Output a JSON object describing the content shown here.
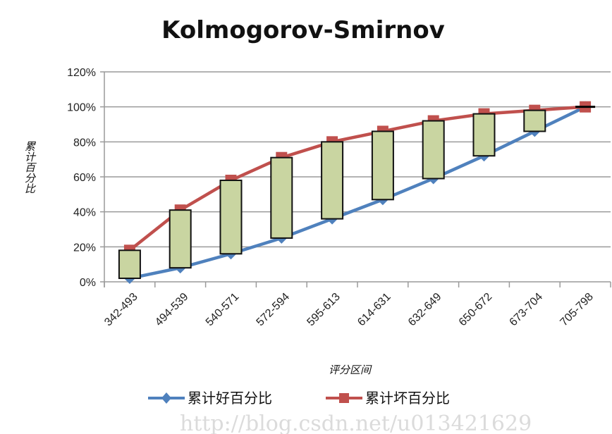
{
  "chart_data": {
    "type": "line",
    "title": "Kolmogorov-Smirnov",
    "xlabel": "评分区间",
    "ylabel": "累计百分比",
    "categories": [
      "342-493",
      "494-539",
      "540-571",
      "572-594",
      "595-613",
      "614-631",
      "632-649",
      "650-672",
      "673-704",
      "705-798"
    ],
    "ylim": [
      0,
      120
    ],
    "yticks": [
      "0%",
      "20%",
      "40%",
      "60%",
      "80%",
      "100%",
      "120%"
    ],
    "grid": true,
    "legend_position": "bottom",
    "series": [
      {
        "name": "累计好百分比",
        "color": "#4F81BD",
        "marker": "diamond",
        "values": [
          2,
          8,
          16,
          25,
          36,
          47,
          59,
          72,
          86,
          100
        ]
      },
      {
        "name": "累计坏百分比",
        "color": "#C0504D",
        "marker": "square",
        "values": [
          18,
          41,
          58,
          71,
          80,
          86,
          92,
          96,
          98,
          100
        ]
      }
    ],
    "gap_bars_color": "#C9D5A1",
    "watermark": "http://blog.csdn.net/u013421629"
  }
}
